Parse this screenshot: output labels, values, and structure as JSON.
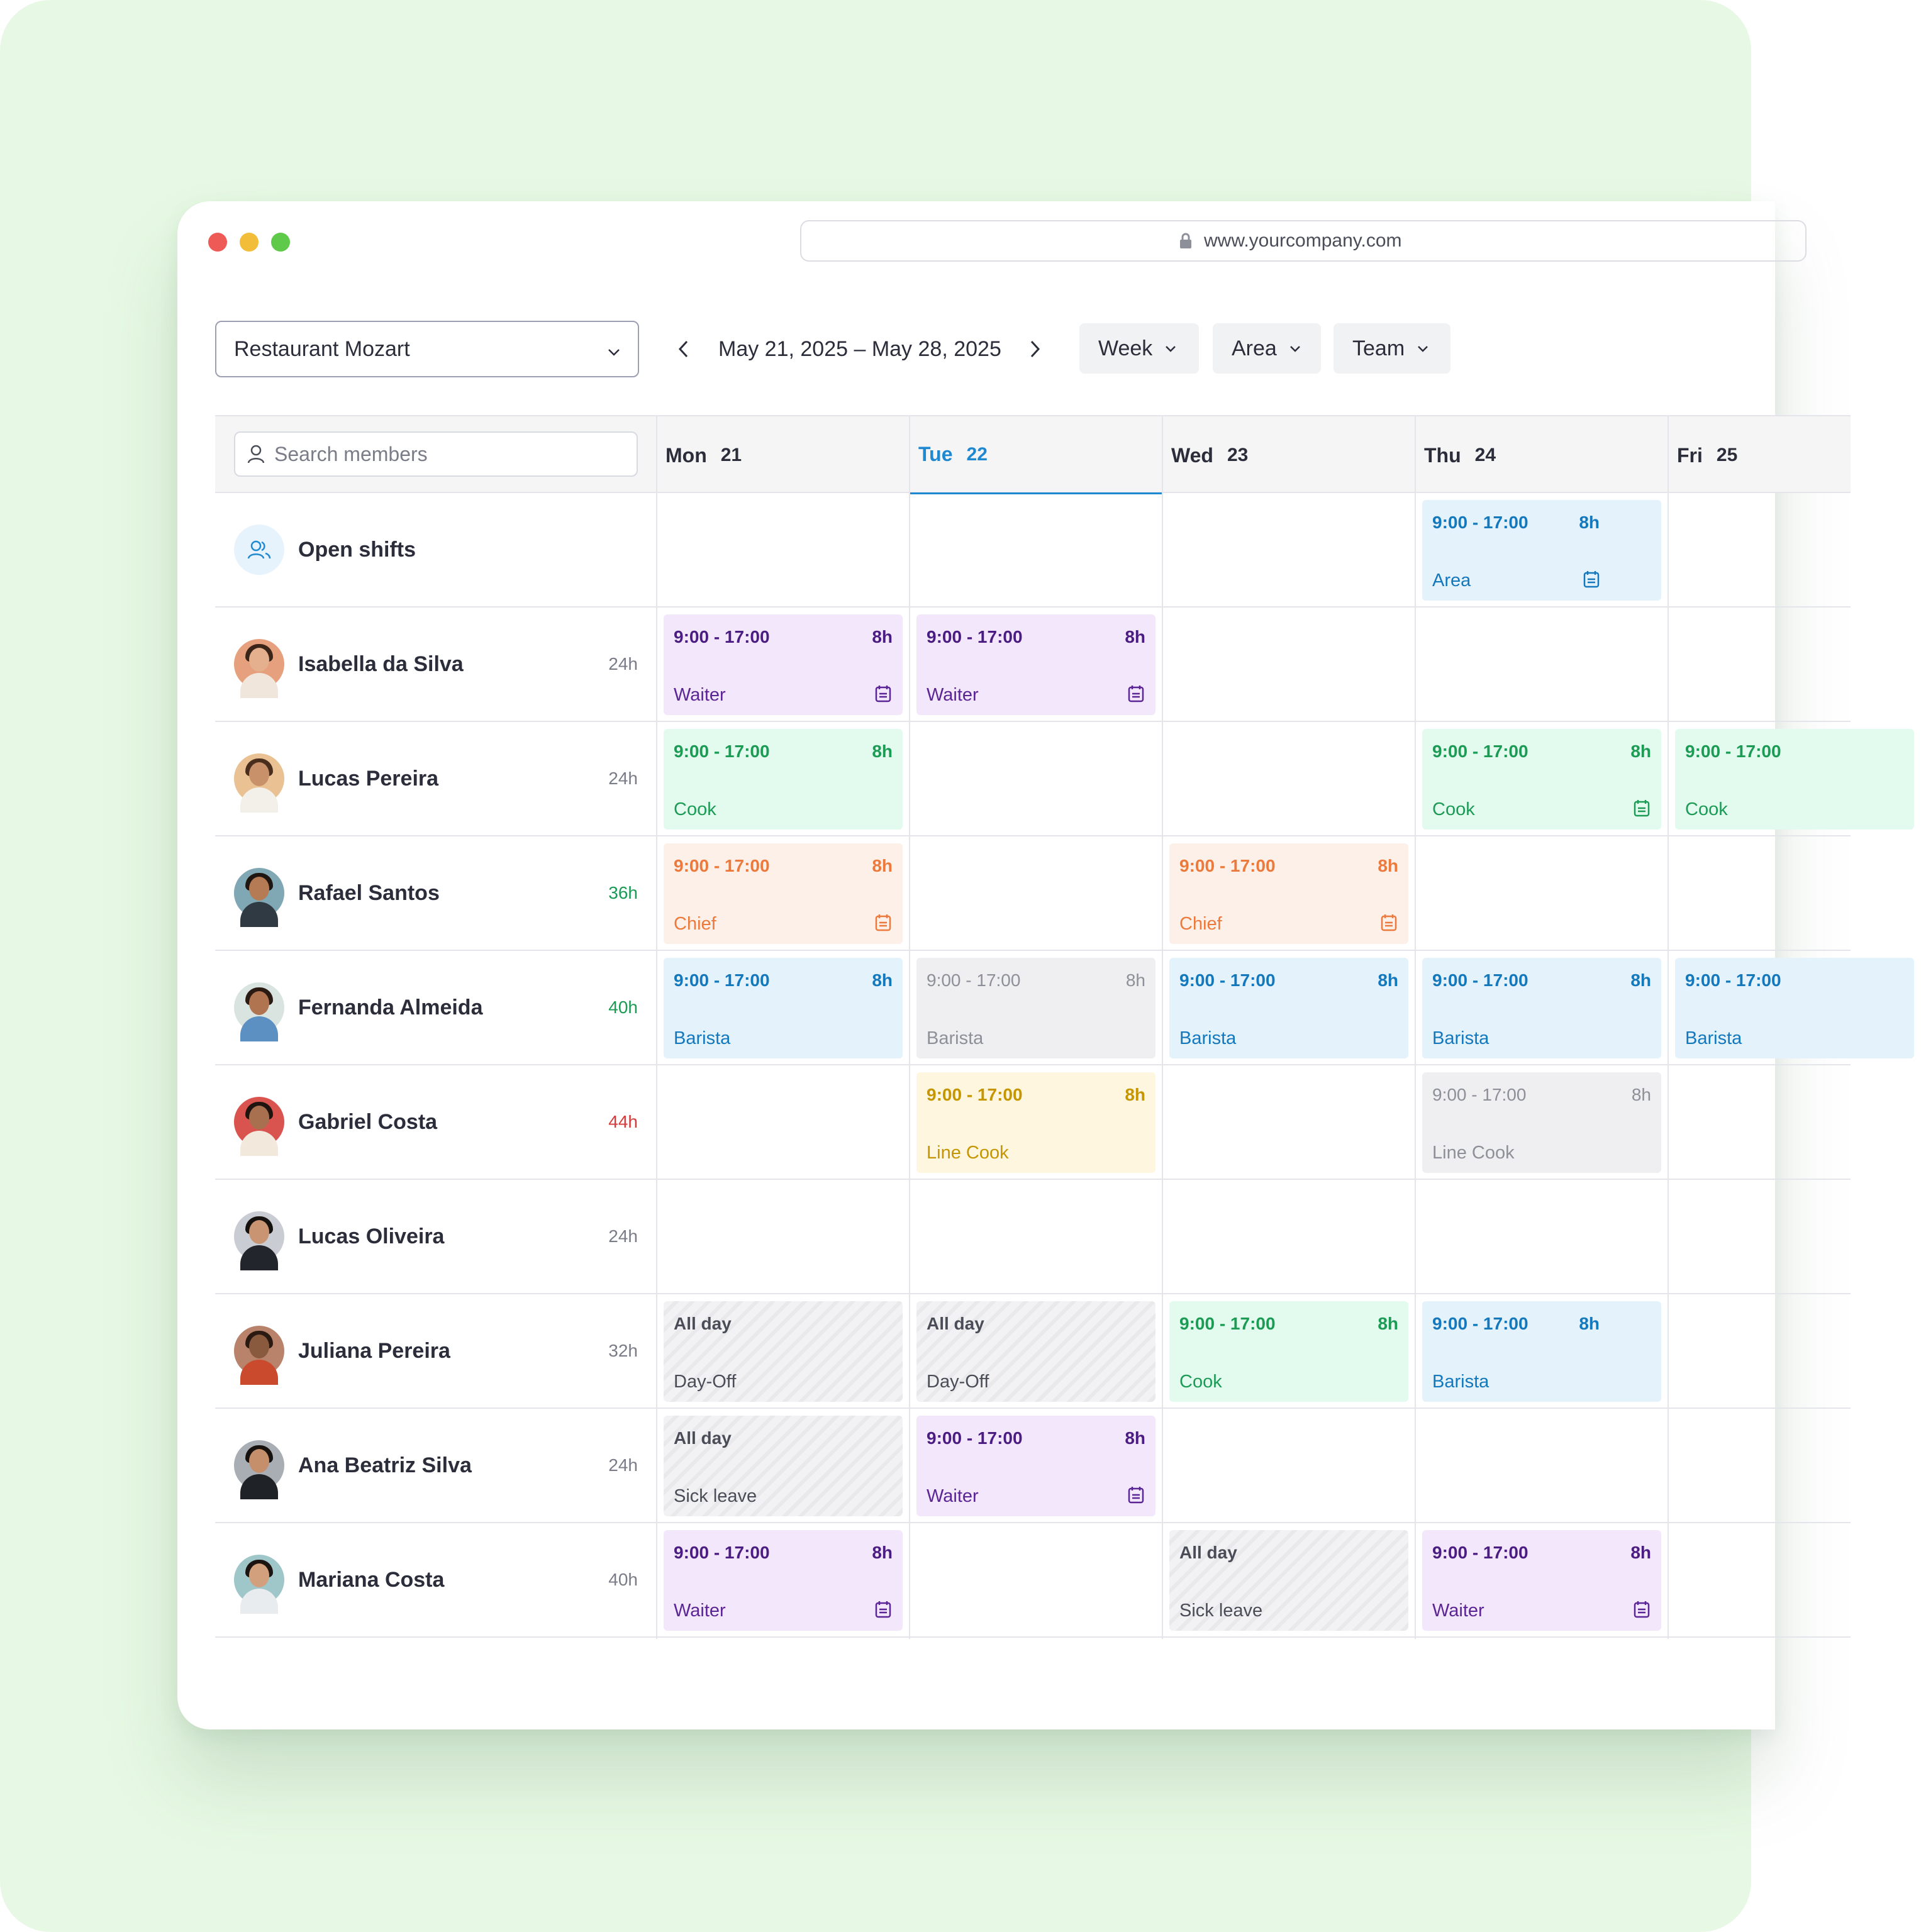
{
  "browser": {
    "url": "www.yourcompany.com"
  },
  "toolbar": {
    "location": "Restaurant Mozart",
    "date_range": "May 21, 2025 – May 28, 2025",
    "view": "Week",
    "area": "Area",
    "team": "Team"
  },
  "search": {
    "placeholder": "Search members"
  },
  "days": [
    {
      "name": "Mon",
      "num": "21"
    },
    {
      "name": "Tue",
      "num": "22"
    },
    {
      "name": "Wed",
      "num": "23"
    },
    {
      "name": "Thu",
      "num": "24"
    },
    {
      "name": "Fri",
      "num": "25"
    }
  ],
  "open_shifts": {
    "label": "Open shifts",
    "thu": {
      "time": "9:00 - 17:00",
      "dur": "8h",
      "role": "Area"
    }
  },
  "members": [
    {
      "name": "Isabella da Silva",
      "hours": "24h"
    },
    {
      "name": "Lucas Pereira",
      "hours": "24h"
    },
    {
      "name": "Rafael Santos",
      "hours": "36h"
    },
    {
      "name": "Fernanda Almeida",
      "hours": "40h"
    },
    {
      "name": "Gabriel Costa",
      "hours": "44h"
    },
    {
      "name": "Lucas Oliveira",
      "hours": "24h"
    },
    {
      "name": "Juliana Pereira",
      "hours": "32h"
    },
    {
      "name": "Ana Beatriz Silva",
      "hours": "24h"
    },
    {
      "name": "Mariana Costa",
      "hours": "40h"
    }
  ],
  "shifts": {
    "isabella_mon": {
      "time": "9:00 - 17:00",
      "dur": "8h",
      "role": "Waiter"
    },
    "isabella_tue": {
      "time": "9:00 - 17:00",
      "dur": "8h",
      "role": "Waiter"
    },
    "lucasp_mon": {
      "time": "9:00 - 17:00",
      "dur": "8h",
      "role": "Cook"
    },
    "lucasp_thu": {
      "time": "9:00 - 17:00",
      "dur": "8h",
      "role": "Cook"
    },
    "lucasp_fri": {
      "time": "9:00 - 17:00",
      "role": "Cook"
    },
    "rafael_mon": {
      "time": "9:00 - 17:00",
      "dur": "8h",
      "role": "Chief"
    },
    "rafael_wed": {
      "time": "9:00 - 17:00",
      "dur": "8h",
      "role": "Chief"
    },
    "fernanda_mon": {
      "time": "9:00 - 17:00",
      "dur": "8h",
      "role": "Barista"
    },
    "fernanda_tue": {
      "time": "9:00 - 17:00",
      "dur": "8h",
      "role": "Barista"
    },
    "fernanda_wed": {
      "time": "9:00 - 17:00",
      "dur": "8h",
      "role": "Barista"
    },
    "fernanda_thu": {
      "time": "9:00 - 17:00",
      "dur": "8h",
      "role": "Barista"
    },
    "fernanda_fri": {
      "time": "9:00 - 17:00",
      "role": "Barista"
    },
    "gabriel_tue": {
      "time": "9:00 - 17:00",
      "dur": "8h",
      "role": "Line Cook"
    },
    "gabriel_thu": {
      "time": "9:00 - 17:00",
      "dur": "8h",
      "role": "Line Cook"
    },
    "juliana_mon": {
      "time": "All day",
      "role": "Day-Off"
    },
    "juliana_tue": {
      "time": "All day",
      "role": "Day-Off"
    },
    "juliana_wed": {
      "time": "9:00 - 17:00",
      "dur": "8h",
      "role": "Cook"
    },
    "juliana_thu": {
      "time": "9:00 - 17:00",
      "dur": "8h",
      "role": "Barista"
    },
    "ana_mon": {
      "time": "All day",
      "role": "Sick leave"
    },
    "ana_tue": {
      "time": "9:00 - 17:00",
      "dur": "8h",
      "role": "Waiter"
    },
    "mariana_mon": {
      "time": "9:00 - 17:00",
      "dur": "8h",
      "role": "Waiter"
    },
    "mariana_wed": {
      "time": "All day",
      "role": "Sick leave"
    },
    "mariana_thu": {
      "time": "9:00 - 17:00",
      "dur": "8h",
      "role": "Waiter"
    }
  },
  "colors": {
    "today": "#1e88d0",
    "waiter": "#5b2596",
    "cook": "#1c9b55",
    "chief": "#ec7a3c",
    "barista": "#1478bd",
    "line_cook": "#c59600",
    "over_hours": "#d63a3a"
  }
}
